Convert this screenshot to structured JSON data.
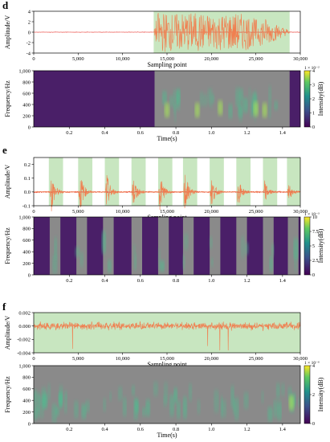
{
  "colors": {
    "signal_orange": "#f07f50",
    "signal_red": "#e8312a",
    "highlight_green": "#c8e6c0",
    "spec_bg": "#4a1f68",
    "spec_gray": "#8a8a8a",
    "spec_teal": "#4bbf90",
    "colorbar_top": "#f2e825",
    "colorbar_mid": "#2a9a8c",
    "colorbar_bottom": "#440154"
  },
  "chart_data": [
    {
      "panel": "d",
      "type": "line",
      "xlabel": "Sampling point",
      "ylabel": "Amplitude/V",
      "xlim": [
        0,
        30000
      ],
      "ylim": [
        -4,
        4
      ],
      "xticks": [
        "0",
        "5,000",
        "10,000",
        "15,000",
        "20,000",
        "25,000",
        "30,000"
      ],
      "yticks": [
        "4",
        "2",
        "0",
        "-2",
        "-4"
      ],
      "highlight_regions": [
        [
          13500,
          28800
        ]
      ],
      "series": [
        {
          "color": "red",
          "x": [
            0,
            13400,
            13500,
            30000
          ],
          "amplitude": [
            0.05,
            0.05,
            0,
            0.1
          ]
        },
        {
          "color": "orange",
          "x": [
            13500,
            14000,
            16000,
            18000,
            20000,
            22000,
            24000,
            25000,
            26000,
            27000,
            28000,
            28800
          ],
          "amplitude": [
            0,
            3.9,
            3.6,
            3.8,
            3.4,
            3.7,
            3.5,
            2.5,
            2.8,
            1.8,
            1.0,
            0.4
          ]
        }
      ]
    },
    {
      "panel": "d",
      "type": "heatmap",
      "xlabel": "Time(s)",
      "ylabel": "Frequency/Hz",
      "colorbar_label": "Intensity(dB)",
      "colorbar_exponent": "1 × 10⁻²",
      "colorbar_ticks": [
        "4",
        "3",
        "2",
        "1",
        "0"
      ],
      "xticks": [
        "0.2",
        "0.4",
        "0.6",
        "0.8",
        "1.0",
        "1.2",
        "1.4"
      ],
      "yticks": [
        "1,000",
        "800",
        "600",
        "400",
        "200",
        "0"
      ],
      "xlim": [
        0,
        1.5
      ],
      "ylim": [
        0,
        1000
      ],
      "active_regions": [
        [
          0.68,
          1.44
        ]
      ],
      "hot_spots": [
        [
          0.75,
          300
        ],
        [
          0.92,
          300
        ],
        [
          1.05,
          340
        ],
        [
          1.25,
          320
        ],
        [
          1.3,
          300
        ]
      ]
    },
    {
      "panel": "e",
      "type": "line",
      "xlabel": "Sampling point",
      "ylabel": "Amplitude/V",
      "xlim": [
        0,
        30000
      ],
      "ylim": [
        -0.1,
        0.25
      ],
      "xticks": [
        "0",
        "5,000",
        "10,000",
        "15,000",
        "20,000",
        "25,000",
        "30,000"
      ],
      "yticks": [
        "0.2",
        "0.1",
        "0.0",
        "-0.1"
      ],
      "highlight_regions": [
        [
          1700,
          3300
        ],
        [
          5000,
          6600
        ],
        [
          8000,
          9600
        ],
        [
          11000,
          12600
        ],
        [
          14000,
          15600
        ],
        [
          16800,
          18400
        ],
        [
          19800,
          21400
        ],
        [
          22800,
          24400
        ],
        [
          25800,
          27400
        ],
        [
          28500,
          30000
        ]
      ],
      "series": [
        {
          "color": "orange",
          "burst_centers": [
            2000,
            5200,
            8200,
            11200,
            14200,
            17000,
            20000,
            23000,
            26000,
            28700
          ],
          "burst_peaks": [
            0.18,
            0.19,
            0.17,
            0.15,
            0.17,
            0.19,
            0.14,
            0.13,
            0.1,
            0.08
          ]
        }
      ]
    },
    {
      "panel": "e",
      "type": "heatmap",
      "xlabel": "",
      "ylabel": "Frequency/Hz",
      "colorbar_label": "Intensity(dB)",
      "colorbar_exponent": "1 × 10⁻³",
      "colorbar_ticks": [
        "10",
        "7.5",
        "5",
        "2.5",
        "0"
      ],
      "xticks": [
        "0.2",
        "0.4",
        "0.6",
        "0.8",
        "1.0",
        "1.2",
        "1.4"
      ],
      "yticks": [
        "1,000",
        "800",
        "600",
        "400",
        "200",
        "0"
      ],
      "xlim": [
        0,
        1.5
      ],
      "ylim": [
        0,
        1000
      ],
      "active_regions": [
        [
          0.09,
          0.15
        ],
        [
          0.24,
          0.3
        ],
        [
          0.39,
          0.45
        ],
        [
          0.55,
          0.61
        ],
        [
          0.7,
          0.76
        ],
        [
          0.84,
          0.9
        ],
        [
          0.99,
          1.05
        ],
        [
          1.14,
          1.2
        ],
        [
          1.29,
          1.35
        ],
        [
          1.43,
          1.49
        ]
      ]
    },
    {
      "panel": "f",
      "type": "line",
      "xlabel": "Sampling point",
      "ylabel": "Amplitude/V",
      "xlim": [
        0,
        30000
      ],
      "ylim": [
        -0.004,
        0.002
      ],
      "xticks": [
        "0",
        "5,000",
        "10,000",
        "15,000",
        "20,000",
        "25,000",
        "30,000"
      ],
      "yticks": [
        "0.002",
        "0.000",
        "-0.002",
        "-0.004"
      ],
      "highlight_regions": [
        [
          0,
          30000
        ]
      ],
      "series": [
        {
          "color": "orange",
          "x": [
            0,
            30000
          ],
          "mean": 0.0,
          "typical_amplitude": 0.001,
          "min_spike": -0.0038
        }
      ]
    },
    {
      "panel": "f",
      "type": "heatmap",
      "xlabel": "Time(s)",
      "ylabel": "Frequency/Hz",
      "colorbar_label": "Intensity(dB)",
      "colorbar_exponent": "1 × 10⁻⁶",
      "colorbar_ticks": [
        "4",
        "2",
        "0"
      ],
      "xticks": [
        "0.2",
        "0.4",
        "0.6",
        "0.8",
        "1.0",
        "1.2",
        "1.4"
      ],
      "yticks": [
        "1,000",
        "800",
        "600",
        "400",
        "200",
        "0"
      ],
      "xlim": [
        0,
        1.5
      ],
      "ylim": [
        0,
        1000
      ],
      "active_regions": [
        [
          0,
          1.5
        ]
      ],
      "hot_spots": [
        [
          1.45,
          360
        ]
      ]
    }
  ]
}
